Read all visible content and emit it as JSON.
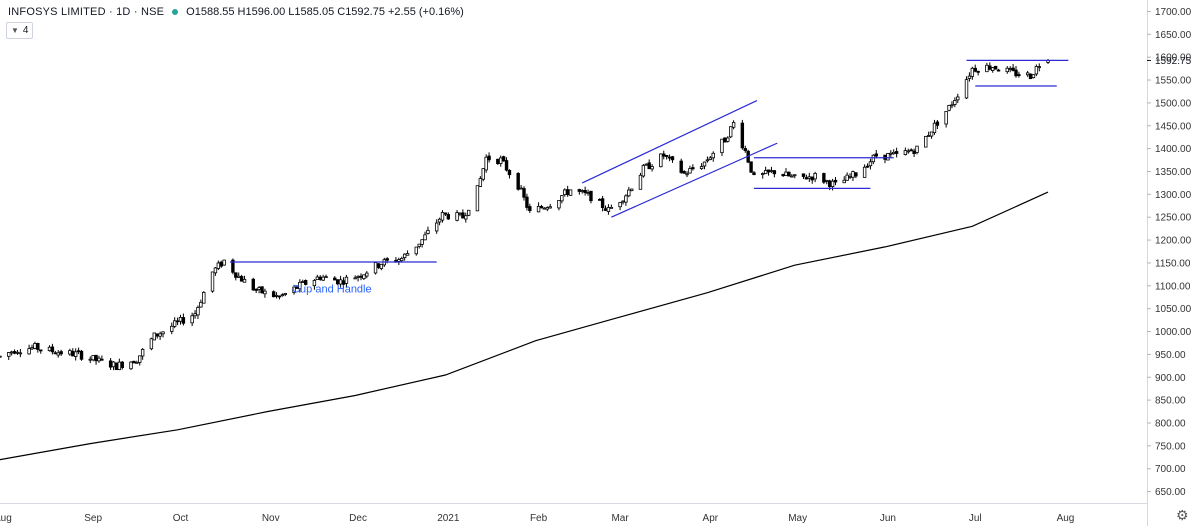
{
  "legend": {
    "symbol": "INFOSYS LIMITED · 1D · NSE",
    "ohlc": "O1588.55 H1596.00 L1585.05 C1592.75 +2.55 (+0.16%)"
  },
  "indicator_toggle": {
    "count": "4"
  },
  "colors": {
    "candle_up_fill": "#ffffff",
    "candle_down_fill": "#000000",
    "candle_border": "#000000",
    "trendline": "#2b2bd6",
    "moving_average": "#000000",
    "annotation_text": "#2962ff",
    "axis_text": "#333333"
  },
  "icons": {
    "settings": "gear-icon",
    "collapse": "chevron-down-icon"
  },
  "chart_data": {
    "type": "candlestick",
    "title": "INFOSYS LIMITED · 1D · NSE",
    "y_axis": {
      "range": [
        625,
        1725
      ],
      "tick_labels": [
        "1700.00",
        "1650.00",
        "1600.00",
        "1550.00",
        "1500.00",
        "1450.00",
        "1400.00",
        "1350.00",
        "1300.00",
        "1250.00",
        "1200.00",
        "1150.00",
        "1100.00",
        "1050.00",
        "1000.00",
        "950.00",
        "900.00",
        "850.00",
        "800.00",
        "750.00",
        "700.00",
        "650.00"
      ],
      "last_price_label": "1592.75"
    },
    "x_axis": {
      "labels": [
        "Aug",
        "Sep",
        "Oct",
        "Nov",
        "Dec",
        "2021",
        "Feb",
        "Mar",
        "Apr",
        "May",
        "Jun",
        "Jul",
        "Aug"
      ],
      "dates": [
        "2020-08-01",
        "2020-09-01",
        "2020-10-01",
        "2020-11-01",
        "2020-12-01",
        "2021-01-01",
        "2021-02-01",
        "2021-03-01",
        "2021-04-01",
        "2021-05-01",
        "2021-06-01",
        "2021-07-01",
        "2021-08-01"
      ],
      "range": [
        "2020-07-31",
        "2021-08-29"
      ]
    },
    "price_path": [
      [
        "2020-07-31",
        945
      ],
      [
        "2020-08-05",
        960
      ],
      [
        "2020-08-12",
        965
      ],
      [
        "2020-08-20",
        955
      ],
      [
        "2020-08-27",
        950
      ],
      [
        "2020-09-03",
        935
      ],
      [
        "2020-09-09",
        925
      ],
      [
        "2020-09-16",
        940
      ],
      [
        "2020-09-22",
        990
      ],
      [
        "2020-09-29",
        1015
      ],
      [
        "2020-10-06",
        1040
      ],
      [
        "2020-10-12",
        1130
      ],
      [
        "2020-10-16",
        1155
      ],
      [
        "2020-10-21",
        1120
      ],
      [
        "2020-10-27",
        1090
      ],
      [
        "2020-11-04",
        1075
      ],
      [
        "2020-11-11",
        1100
      ],
      [
        "2020-11-18",
        1120
      ],
      [
        "2020-11-25",
        1110
      ],
      [
        "2020-12-02",
        1125
      ],
      [
        "2020-12-09",
        1150
      ],
      [
        "2020-12-16",
        1160
      ],
      [
        "2020-12-23",
        1200
      ],
      [
        "2020-12-30",
        1255
      ],
      [
        "2021-01-06",
        1250
      ],
      [
        "2021-01-11",
        1310
      ],
      [
        "2021-01-14",
        1380
      ],
      [
        "2021-01-19",
        1375
      ],
      [
        "2021-01-25",
        1320
      ],
      [
        "2021-01-29",
        1260
      ],
      [
        "2021-02-05",
        1280
      ],
      [
        "2021-02-12",
        1310
      ],
      [
        "2021-02-19",
        1295
      ],
      [
        "2021-02-25",
        1265
      ],
      [
        "2021-03-03",
        1300
      ],
      [
        "2021-03-09",
        1355
      ],
      [
        "2021-03-16",
        1385
      ],
      [
        "2021-03-23",
        1345
      ],
      [
        "2021-03-30",
        1370
      ],
      [
        "2021-04-06",
        1420
      ],
      [
        "2021-04-09",
        1455
      ],
      [
        "2021-04-13",
        1395
      ],
      [
        "2021-04-16",
        1335
      ],
      [
        "2021-04-23",
        1350
      ],
      [
        "2021-04-30",
        1335
      ],
      [
        "2021-05-07",
        1340
      ],
      [
        "2021-05-14",
        1320
      ],
      [
        "2021-05-21",
        1345
      ],
      [
        "2021-05-28",
        1385
      ],
      [
        "2021-06-04",
        1385
      ],
      [
        "2021-06-11",
        1400
      ],
      [
        "2021-06-17",
        1450
      ],
      [
        "2021-06-22",
        1490
      ],
      [
        "2021-06-25",
        1520
      ],
      [
        "2021-06-30",
        1575
      ],
      [
        "2021-07-07",
        1580
      ],
      [
        "2021-07-14",
        1565
      ],
      [
        "2021-07-20",
        1560
      ],
      [
        "2021-07-23",
        1585
      ],
      [
        "2021-07-26",
        1592.75
      ]
    ],
    "last_candle": {
      "date": "2021-07-26",
      "open": 1588.55,
      "high": 1596.0,
      "low": 1585.05,
      "close": 1592.75
    },
    "moving_average": [
      [
        "2020-07-31",
        720
      ],
      [
        "2020-08-31",
        755
      ],
      [
        "2020-09-30",
        785
      ],
      [
        "2020-10-31",
        825
      ],
      [
        "2020-11-30",
        860
      ],
      [
        "2020-12-31",
        905
      ],
      [
        "2021-01-31",
        980
      ],
      [
        "2021-02-28",
        1030
      ],
      [
        "2021-03-31",
        1085
      ],
      [
        "2021-04-30",
        1145
      ],
      [
        "2021-05-31",
        1185
      ],
      [
        "2021-06-30",
        1230
      ],
      [
        "2021-07-26",
        1305
      ]
    ],
    "trendlines": [
      {
        "name": "cup-handle-rim",
        "points": [
          [
            "2020-10-18",
            1152
          ],
          [
            "2020-12-28",
            1152
          ]
        ]
      },
      {
        "name": "channel-upper",
        "points": [
          [
            "2021-02-16",
            1325
          ],
          [
            "2021-04-17",
            1505
          ]
        ]
      },
      {
        "name": "channel-lower",
        "points": [
          [
            "2021-02-26",
            1250
          ],
          [
            "2021-04-24",
            1412
          ]
        ]
      },
      {
        "name": "box-top",
        "points": [
          [
            "2021-04-16",
            1380
          ],
          [
            "2021-06-03",
            1380
          ]
        ]
      },
      {
        "name": "box-bottom",
        "points": [
          [
            "2021-04-16",
            1313
          ],
          [
            "2021-05-26",
            1313
          ]
        ]
      },
      {
        "name": "range-top",
        "points": [
          [
            "2021-06-28",
            1593
          ],
          [
            "2021-08-02",
            1593
          ]
        ]
      },
      {
        "name": "range-bottom",
        "points": [
          [
            "2021-07-01",
            1537
          ],
          [
            "2021-07-29",
            1537
          ]
        ]
      }
    ],
    "annotations": [
      {
        "text": "Cup and Handle",
        "date": "2020-11-22",
        "price": 1085
      }
    ],
    "grid": false
  }
}
